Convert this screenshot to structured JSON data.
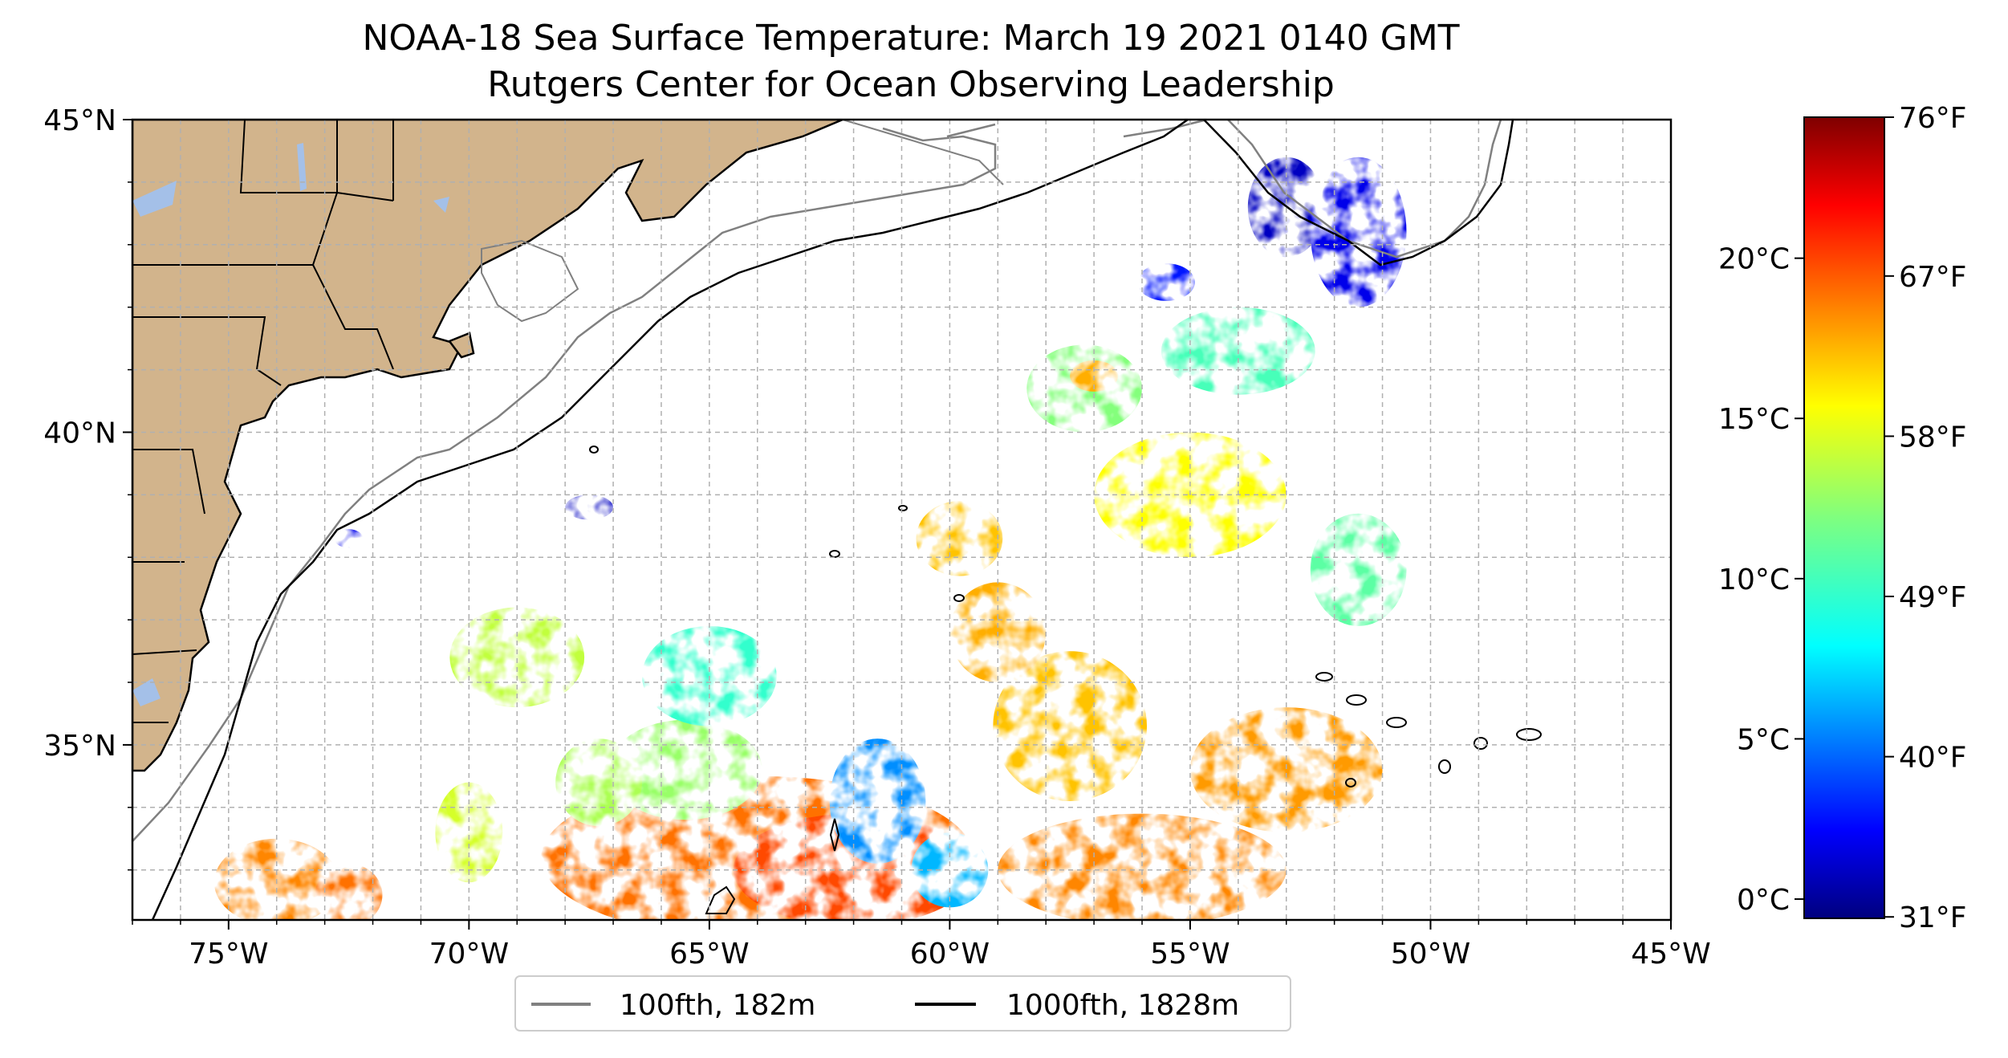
{
  "title": "NOAA-18 Sea Surface Temperature: March 19 2021 0140 GMT",
  "subtitle": "Rutgers Center for Ocean Observing Leadership",
  "map": {
    "lon_range": [
      -77,
      -45
    ],
    "lat_range": [
      32.2,
      45
    ],
    "lon_ticks": [
      {
        "value": -75,
        "label": "75°W"
      },
      {
        "value": -70,
        "label": "70°W"
      },
      {
        "value": -65,
        "label": "65°W"
      },
      {
        "value": -60,
        "label": "60°W"
      },
      {
        "value": -55,
        "label": "55°W"
      },
      {
        "value": -50,
        "label": "50°W"
      },
      {
        "value": -45,
        "label": "45°W"
      }
    ],
    "lat_ticks": [
      {
        "value": 45,
        "label": "45°N"
      },
      {
        "value": 40,
        "label": "40°N"
      },
      {
        "value": 35,
        "label": "35°N"
      }
    ],
    "land_color": "#d2b48c",
    "lake_color": "#a4c0e8",
    "grid": true
  },
  "legend": {
    "placement": "bottom-center",
    "items": [
      {
        "label": "100fth, 182m",
        "color": "#808080"
      },
      {
        "label": "1000fth, 1828m",
        "color": "#000000"
      }
    ]
  },
  "colorbar": {
    "colormap": "jet",
    "celsius_range": [
      -0.6,
      24.4
    ],
    "celsius_ticks": [
      {
        "value": 0,
        "label": "0°C"
      },
      {
        "value": 5,
        "label": "5°C"
      },
      {
        "value": 10,
        "label": "10°C"
      },
      {
        "value": 15,
        "label": "15°C"
      },
      {
        "value": 20,
        "label": "20°C"
      }
    ],
    "fahrenheit_ticks": [
      {
        "value": 31,
        "label": "31°F"
      },
      {
        "value": 40,
        "label": "40°F"
      },
      {
        "value": 49,
        "label": "49°F"
      },
      {
        "value": 58,
        "label": "58°F"
      },
      {
        "value": 67,
        "label": "67°F"
      },
      {
        "value": 76,
        "label": "76°F"
      }
    ]
  },
  "sst_patches": [
    {
      "lon": -64,
      "lat": 33.2,
      "rlon": 4.5,
      "rlat": 1.3,
      "c": 18.5
    },
    {
      "lon": -62,
      "lat": 33.0,
      "rlon": 2.5,
      "rlat": 0.9,
      "c": 19.5
    },
    {
      "lon": -65.5,
      "lat": 34.6,
      "rlon": 1.6,
      "rlat": 0.8,
      "c": 12.5
    },
    {
      "lon": -61.5,
      "lat": 34.1,
      "rlon": 1.0,
      "rlat": 1.0,
      "c": 6.0
    },
    {
      "lon": -60,
      "lat": 33.0,
      "rlon": 0.8,
      "rlat": 0.6,
      "c": 7.0
    },
    {
      "lon": -56,
      "lat": 33.0,
      "rlon": 3.0,
      "rlat": 0.9,
      "c": 18.0
    },
    {
      "lon": -53,
      "lat": 34.6,
      "rlon": 2.0,
      "rlat": 1.0,
      "c": 17.5
    },
    {
      "lon": -57.5,
      "lat": 35.3,
      "rlon": 1.6,
      "rlat": 1.2,
      "c": 16.5
    },
    {
      "lon": -59,
      "lat": 36.8,
      "rlon": 1.0,
      "rlat": 0.8,
      "c": 17.0
    },
    {
      "lon": -59.8,
      "lat": 38.3,
      "rlon": 0.9,
      "rlat": 0.6,
      "c": 16.5
    },
    {
      "lon": -57.2,
      "lat": 40.7,
      "rlon": 1.2,
      "rlat": 0.7,
      "c": 12.0
    },
    {
      "lon": -57,
      "lat": 40.9,
      "rlon": 0.5,
      "rlat": 0.25,
      "c": 17.0
    },
    {
      "lon": -54,
      "lat": 41.3,
      "rlon": 1.6,
      "rlat": 0.7,
      "c": 10.5
    },
    {
      "lon": -53,
      "lat": 43.6,
      "rlon": 0.8,
      "rlat": 0.8,
      "c": 1.0
    },
    {
      "lon": -51.5,
      "lat": 43.2,
      "rlon": 1.0,
      "rlat": 1.2,
      "c": 2.0
    },
    {
      "lon": -55.5,
      "lat": 42.4,
      "rlon": 0.6,
      "rlat": 0.3,
      "c": 3.0
    },
    {
      "lon": -55,
      "lat": 39.0,
      "rlon": 2.0,
      "rlat": 1.0,
      "c": 15.0
    },
    {
      "lon": -51.5,
      "lat": 37.8,
      "rlon": 1.0,
      "rlat": 0.9,
      "c": 11.0
    },
    {
      "lon": -69,
      "lat": 36.4,
      "rlon": 1.4,
      "rlat": 0.8,
      "c": 13.5
    },
    {
      "lon": -65,
      "lat": 36.1,
      "rlon": 1.4,
      "rlat": 0.8,
      "c": 10.0
    },
    {
      "lon": -67.3,
      "lat": 34.4,
      "rlon": 0.9,
      "rlat": 0.7,
      "c": 13.0
    },
    {
      "lon": -70,
      "lat": 33.6,
      "rlon": 0.7,
      "rlat": 0.8,
      "c": 14.0
    },
    {
      "lon": -74,
      "lat": 32.8,
      "rlon": 1.3,
      "rlat": 0.7,
      "c": 18.0
    },
    {
      "lon": -72.5,
      "lat": 32.6,
      "rlon": 0.7,
      "rlat": 0.5,
      "c": 18.5
    },
    {
      "lon": -67.5,
      "lat": 38.8,
      "rlon": 0.5,
      "rlat": 0.2,
      "c": 1.0
    },
    {
      "lon": -72.5,
      "lat": 38.3,
      "rlon": 0.3,
      "rlat": 0.15,
      "c": 2.0
    }
  ]
}
